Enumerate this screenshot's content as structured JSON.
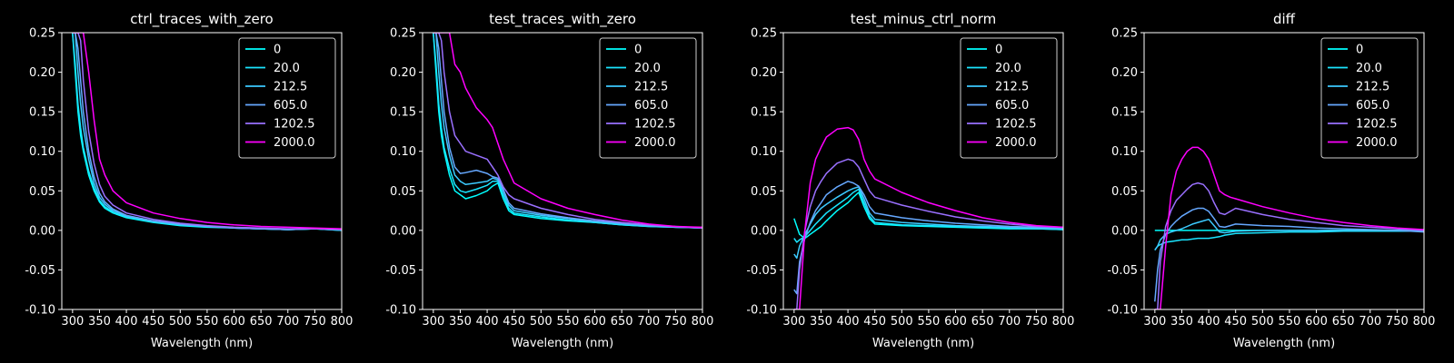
{
  "figure": {
    "background": "#000000",
    "foreground": "#ffffff"
  },
  "legend": {
    "location": "top-right",
    "entries": [
      {
        "label": "0",
        "color": "#00ffff"
      },
      {
        "label": "20.0",
        "color": "#1ae5ff"
      },
      {
        "label": "212.5",
        "color": "#3ccaff"
      },
      {
        "label": "605.0",
        "color": "#66a8ff"
      },
      {
        "label": "1202.5",
        "color": "#9a70ff"
      },
      {
        "label": "2000.0",
        "color": "#ff00ff"
      }
    ]
  },
  "chart_data": [
    {
      "type": "line",
      "title": "ctrl_traces_with_zero",
      "xlabel": "Wavelength (nm)",
      "ylabel": "",
      "xlim": [
        280,
        800
      ],
      "ylim": [
        -0.1,
        0.25
      ],
      "xticks": [
        "300",
        "350",
        "400",
        "450",
        "500",
        "550",
        "600",
        "650",
        "700",
        "750",
        "800"
      ],
      "yticks": [
        "-0.10",
        "-0.05",
        "0.00",
        "0.05",
        "0.10",
        "0.15",
        "0.20",
        "0.25"
      ],
      "x": [
        300,
        305,
        310,
        315,
        320,
        330,
        340,
        350,
        360,
        375,
        400,
        450,
        500,
        550,
        600,
        650,
        700,
        750,
        800
      ],
      "series": [
        {
          "name": "0",
          "values": [
            0.25,
            0.2,
            0.15,
            0.12,
            0.1,
            0.07,
            0.05,
            0.036,
            0.028,
            0.022,
            0.016,
            0.01,
            0.006,
            0.004,
            0.003,
            0.002,
            0.001,
            0.002,
            0.0
          ]
        },
        {
          "name": "20.0",
          "values": [
            0.25,
            0.21,
            0.16,
            0.13,
            0.105,
            0.075,
            0.054,
            0.038,
            0.03,
            0.023,
            0.017,
            0.011,
            0.007,
            0.005,
            0.003,
            0.002,
            0.001,
            0.002,
            0.0
          ]
        },
        {
          "name": "212.5",
          "values": [
            0.25,
            0.25,
            0.2,
            0.16,
            0.13,
            0.09,
            0.06,
            0.042,
            0.033,
            0.025,
            0.018,
            0.011,
            0.007,
            0.005,
            0.003,
            0.002,
            0.001,
            0.002,
            0.001
          ]
        },
        {
          "name": "605.0",
          "values": [
            0.25,
            0.25,
            0.23,
            0.19,
            0.15,
            0.1,
            0.068,
            0.047,
            0.036,
            0.027,
            0.019,
            0.012,
            0.008,
            0.005,
            0.003,
            0.002,
            0.001,
            0.002,
            0.001
          ]
        },
        {
          "name": "1202.5",
          "values": [
            0.25,
            0.25,
            0.25,
            0.24,
            0.19,
            0.125,
            0.085,
            0.058,
            0.043,
            0.032,
            0.022,
            0.014,
            0.009,
            0.006,
            0.004,
            0.003,
            0.002,
            0.002,
            0.001
          ]
        },
        {
          "name": "2000.0",
          "values": [
            0.25,
            0.25,
            0.25,
            0.25,
            0.25,
            0.2,
            0.14,
            0.09,
            0.07,
            0.05,
            0.035,
            0.022,
            0.015,
            0.01,
            0.007,
            0.005,
            0.004,
            0.003,
            0.002
          ]
        }
      ]
    },
    {
      "type": "line",
      "title": "test_traces_with_zero",
      "xlabel": "Wavelength (nm)",
      "ylabel": "",
      "xlim": [
        280,
        800
      ],
      "ylim": [
        -0.1,
        0.25
      ],
      "xticks": [
        "300",
        "350",
        "400",
        "450",
        "500",
        "550",
        "600",
        "650",
        "700",
        "750",
        "800"
      ],
      "yticks": [
        "-0.10",
        "-0.05",
        "0.00",
        "0.05",
        "0.10",
        "0.15",
        "0.20",
        "0.25"
      ],
      "x": [
        300,
        305,
        310,
        315,
        320,
        330,
        340,
        350,
        360,
        380,
        400,
        410,
        420,
        430,
        440,
        450,
        500,
        550,
        600,
        650,
        700,
        750,
        800
      ],
      "series": [
        {
          "name": "0",
          "values": [
            0.25,
            0.2,
            0.15,
            0.12,
            0.1,
            0.07,
            0.05,
            0.045,
            0.04,
            0.044,
            0.05,
            0.056,
            0.06,
            0.04,
            0.025,
            0.02,
            0.015,
            0.012,
            0.01,
            0.007,
            0.005,
            0.004,
            0.003
          ]
        },
        {
          "name": "20.0",
          "values": [
            0.25,
            0.21,
            0.16,
            0.13,
            0.105,
            0.078,
            0.058,
            0.05,
            0.048,
            0.052,
            0.057,
            0.062,
            0.062,
            0.045,
            0.028,
            0.022,
            0.017,
            0.013,
            0.01,
            0.007,
            0.005,
            0.004,
            0.003
          ]
        },
        {
          "name": "212.5",
          "values": [
            0.25,
            0.25,
            0.2,
            0.16,
            0.13,
            0.095,
            0.07,
            0.062,
            0.058,
            0.06,
            0.062,
            0.066,
            0.064,
            0.05,
            0.032,
            0.025,
            0.019,
            0.015,
            0.011,
            0.008,
            0.006,
            0.004,
            0.003
          ]
        },
        {
          "name": "605.0",
          "values": [
            0.25,
            0.25,
            0.23,
            0.19,
            0.15,
            0.105,
            0.08,
            0.072,
            0.073,
            0.076,
            0.072,
            0.068,
            0.066,
            0.052,
            0.035,
            0.028,
            0.021,
            0.016,
            0.012,
            0.009,
            0.006,
            0.004,
            0.003
          ]
        },
        {
          "name": "1202.5",
          "values": [
            0.25,
            0.25,
            0.25,
            0.24,
            0.2,
            0.15,
            0.12,
            0.11,
            0.1,
            0.095,
            0.09,
            0.08,
            0.07,
            0.055,
            0.045,
            0.04,
            0.028,
            0.02,
            0.014,
            0.01,
            0.007,
            0.005,
            0.003
          ]
        },
        {
          "name": "2000.0",
          "values": [
            0.25,
            0.25,
            0.25,
            0.25,
            0.25,
            0.25,
            0.21,
            0.2,
            0.18,
            0.155,
            0.14,
            0.13,
            0.11,
            0.09,
            0.075,
            0.06,
            0.04,
            0.028,
            0.02,
            0.013,
            0.008,
            0.005,
            0.004
          ]
        }
      ]
    },
    {
      "type": "line",
      "title": "test_minus_ctrl_norm",
      "xlabel": "Wavelength (nm)",
      "ylabel": "",
      "xlim": [
        280,
        800
      ],
      "ylim": [
        -0.1,
        0.25
      ],
      "xticks": [
        "300",
        "350",
        "400",
        "450",
        "500",
        "550",
        "600",
        "650",
        "700",
        "750",
        "800"
      ],
      "yticks": [
        "-0.10",
        "-0.05",
        "0.00",
        "0.05",
        "0.10",
        "0.15",
        "0.20",
        "0.25"
      ],
      "x": [
        300,
        305,
        310,
        320,
        330,
        340,
        350,
        360,
        380,
        400,
        410,
        420,
        430,
        440,
        450,
        500,
        550,
        600,
        650,
        700,
        750,
        800
      ],
      "series": [
        {
          "name": "0",
          "values": [
            0.015,
            0.005,
            -0.005,
            -0.01,
            -0.005,
            0.0,
            0.005,
            0.012,
            0.025,
            0.035,
            0.042,
            0.048,
            0.03,
            0.015,
            0.008,
            0.006,
            0.005,
            0.004,
            0.003,
            0.002,
            0.002,
            0.001
          ]
        },
        {
          "name": "20.0",
          "values": [
            -0.01,
            -0.015,
            -0.012,
            -0.008,
            0.0,
            0.008,
            0.015,
            0.022,
            0.032,
            0.042,
            0.048,
            0.052,
            0.035,
            0.018,
            0.01,
            0.007,
            0.006,
            0.005,
            0.004,
            0.003,
            0.002,
            0.001
          ]
        },
        {
          "name": "212.5",
          "values": [
            -0.03,
            -0.035,
            -0.02,
            -0.005,
            0.008,
            0.02,
            0.028,
            0.033,
            0.042,
            0.05,
            0.053,
            0.055,
            0.04,
            0.022,
            0.014,
            0.01,
            0.008,
            0.006,
            0.005,
            0.004,
            0.003,
            0.002
          ]
        },
        {
          "name": "605.0",
          "values": [
            -0.075,
            -0.08,
            -0.04,
            -0.01,
            0.01,
            0.025,
            0.035,
            0.045,
            0.055,
            0.062,
            0.06,
            0.056,
            0.045,
            0.03,
            0.022,
            0.016,
            0.012,
            0.009,
            0.007,
            0.005,
            0.004,
            0.003
          ]
        },
        {
          "name": "1202.5",
          "values": [
            -0.1,
            -0.1,
            -0.05,
            0.0,
            0.03,
            0.05,
            0.062,
            0.072,
            0.085,
            0.09,
            0.088,
            0.08,
            0.065,
            0.05,
            0.042,
            0.032,
            0.024,
            0.017,
            0.012,
            0.008,
            0.005,
            0.004
          ]
        },
        {
          "name": "2000.0",
          "values": [
            -0.1,
            -0.1,
            -0.1,
            0.0,
            0.06,
            0.09,
            0.105,
            0.118,
            0.128,
            0.13,
            0.127,
            0.115,
            0.09,
            0.075,
            0.065,
            0.048,
            0.035,
            0.025,
            0.016,
            0.01,
            0.006,
            0.004
          ]
        }
      ]
    },
    {
      "type": "line",
      "title": "diff",
      "xlabel": "Wavelength (nm)",
      "ylabel": "",
      "xlim": [
        280,
        800
      ],
      "ylim": [
        -0.1,
        0.25
      ],
      "xticks": [
        "300",
        "350",
        "400",
        "450",
        "500",
        "550",
        "600",
        "650",
        "700",
        "750",
        "800"
      ],
      "yticks": [
        "-0.10",
        "-0.05",
        "0.00",
        "0.05",
        "0.10",
        "0.15",
        "0.20",
        "0.25"
      ],
      "x": [
        300,
        305,
        310,
        320,
        330,
        340,
        350,
        360,
        370,
        380,
        390,
        400,
        410,
        420,
        430,
        440,
        450,
        500,
        550,
        600,
        650,
        700,
        750,
        800
      ],
      "series": [
        {
          "name": "0",
          "values": [
            0.0,
            0.0,
            0.0,
            0.0,
            0.0,
            0.0,
            0.0,
            0.0,
            0.0,
            0.0,
            0.0,
            0.0,
            0.0,
            0.0,
            0.0,
            0.0,
            0.0,
            0.0,
            0.0,
            0.0,
            0.0,
            0.0,
            0.0,
            0.0
          ]
        },
        {
          "name": "20.0",
          "values": [
            -0.025,
            -0.02,
            -0.018,
            -0.015,
            -0.014,
            -0.013,
            -0.012,
            -0.012,
            -0.011,
            -0.01,
            -0.01,
            -0.01,
            -0.009,
            -0.008,
            -0.006,
            -0.005,
            -0.004,
            -0.003,
            -0.002,
            -0.002,
            -0.001,
            -0.001,
            -0.001,
            -0.001
          ]
        },
        {
          "name": "212.5",
          "values": [
            -0.025,
            -0.02,
            -0.012,
            -0.005,
            -0.002,
            0.0,
            0.002,
            0.005,
            0.008,
            0.01,
            0.012,
            0.014,
            0.006,
            -0.002,
            -0.003,
            -0.002,
            -0.001,
            0.0,
            0.0,
            0.0,
            0.0,
            0.0,
            0.0,
            -0.001
          ]
        },
        {
          "name": "605.0",
          "values": [
            -0.09,
            -0.05,
            -0.025,
            -0.005,
            0.005,
            0.012,
            0.018,
            0.022,
            0.026,
            0.028,
            0.028,
            0.024,
            0.015,
            0.005,
            0.004,
            0.006,
            0.008,
            0.006,
            0.005,
            0.003,
            0.002,
            0.001,
            0.0,
            -0.002
          ]
        },
        {
          "name": "1202.5",
          "values": [
            -0.1,
            -0.1,
            -0.04,
            0.005,
            0.025,
            0.038,
            0.045,
            0.052,
            0.058,
            0.06,
            0.058,
            0.05,
            0.035,
            0.022,
            0.02,
            0.024,
            0.028,
            0.02,
            0.014,
            0.01,
            0.006,
            0.004,
            0.002,
            0.0
          ]
        },
        {
          "name": "2000.0",
          "values": [
            -0.1,
            -0.1,
            -0.1,
            -0.02,
            0.045,
            0.075,
            0.09,
            0.1,
            0.105,
            0.105,
            0.1,
            0.09,
            0.07,
            0.05,
            0.045,
            0.042,
            0.04,
            0.03,
            0.022,
            0.015,
            0.01,
            0.006,
            0.003,
            0.001
          ]
        }
      ]
    }
  ]
}
